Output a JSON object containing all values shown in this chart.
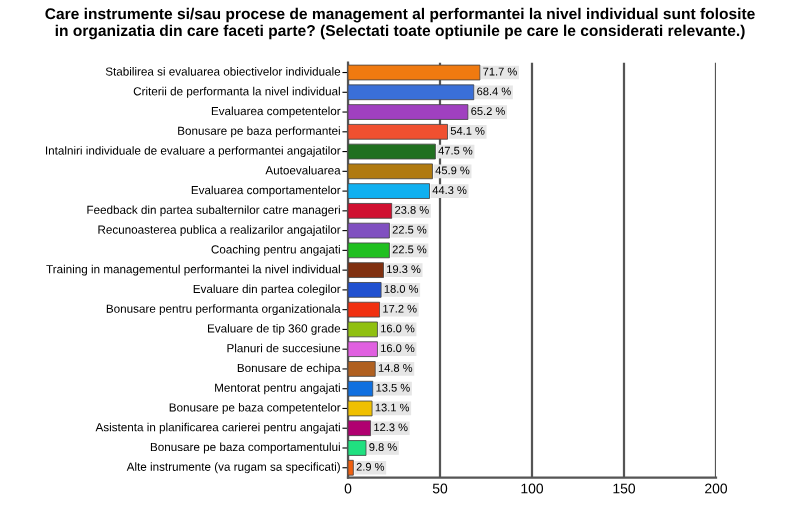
{
  "chart_data": {
    "type": "bar",
    "orientation": "horizontal",
    "title": "Care instrumente si/sau procese de management al performantei la nivel individual sunt folosite\nin organizatia din care faceti parte? (Selectati toate optiunile pe care le considerati relevante.)",
    "categories": [
      "Stabilirea si evaluarea\nobiectivelor individuale",
      "Criterii de performanta\nla nivel individual",
      "Evaluarea competentelor",
      "Bonusare pe baza\nperformantei",
      "Intalniri individuale\nde evaluare a\nperformantei angajatilor",
      "Autoevaluarea",
      "Evaluarea\ncomportamentelor",
      "Feedback din partea\nsubalternilor catre manageri",
      "Recunoasterea publica a\nrealizarilor angajatilor",
      "Coaching pentru angajati",
      "Training in managementul\nperformantei\nla nivel individual",
      "Evaluare din\npartea colegilor",
      "Bonusare pentru performanta\norganizationala",
      "Evaluare de\ntip 360 grade",
      "Planuri de succesiune",
      "Bonusare de echipa",
      "Mentorat pentru angajati",
      "Bonusare pe baza\ncompetentelor",
      "Asistenta in\nplanificarea carierei\npentru angajati",
      "Bonusare pe baza\ncomportamentului",
      "Alte instrumente (va\nrugam sa specificati)"
    ],
    "values": [
      71.7,
      68.4,
      65.2,
      54.1,
      47.5,
      45.9,
      44.3,
      23.8,
      22.5,
      22.5,
      19.3,
      18.0,
      17.2,
      16.0,
      16.0,
      14.8,
      13.5,
      13.1,
      12.3,
      9.8,
      2.9
    ],
    "value_labels": [
      "71.7 %",
      "68.4 %",
      "65.2 %",
      "54.1 %",
      "47.5 %",
      "45.9 %",
      "44.3 %",
      "23.8 %",
      "22.5 %",
      "22.5 %",
      "19.3 %",
      "18.0 %",
      "17.2 %",
      "16.0 %",
      "16.0 %",
      "14.8 %",
      "13.5 %",
      "13.1 %",
      "12.3 %",
      "9.8 %",
      "2.9 %"
    ],
    "colors": [
      "#f07a10",
      "#3a6fd8",
      "#a040c0",
      "#f05030",
      "#207020",
      "#b07a10",
      "#10b0f0",
      "#d01030",
      "#8050c0",
      "#20c020",
      "#803010",
      "#2050d0",
      "#f03010",
      "#90c010",
      "#e060e0",
      "#b06020",
      "#1070e0",
      "#f0c000",
      "#b00070",
      "#20e080",
      "#f06010"
    ],
    "xlim": [
      0,
      200
    ],
    "xticks": [
      0,
      50,
      100,
      150,
      200
    ],
    "grid": "x"
  }
}
